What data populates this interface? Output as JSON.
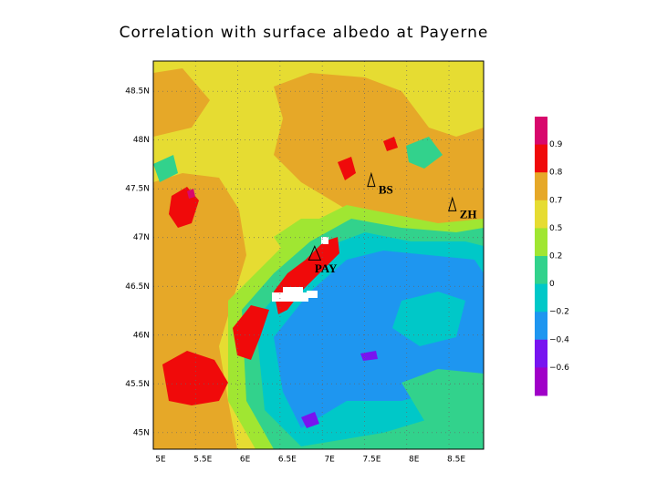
{
  "title": "Correlation with surface albedo at Payerne",
  "lon_range": [
    5,
    8.91
  ],
  "lat_range": [
    44.83,
    48.81
  ],
  "lat_ticks": [
    {
      "value": 45,
      "label": "45N"
    },
    {
      "value": 45.5,
      "label": "45.5N"
    },
    {
      "value": 46,
      "label": "46N"
    },
    {
      "value": 46.5,
      "label": "46.5N"
    },
    {
      "value": 47,
      "label": "47N"
    },
    {
      "value": 47.5,
      "label": "47.5N"
    },
    {
      "value": 48,
      "label": "48N"
    },
    {
      "value": 48.5,
      "label": "48.5N"
    }
  ],
  "lon_ticks": [
    {
      "value": 5,
      "label": "5E"
    },
    {
      "value": 5.5,
      "label": "5.5E"
    },
    {
      "value": 6,
      "label": "6E"
    },
    {
      "value": 6.5,
      "label": "6.5E"
    },
    {
      "value": 7,
      "label": "7E"
    },
    {
      "value": 7.5,
      "label": "7.5E"
    },
    {
      "value": 8,
      "label": "8E"
    },
    {
      "value": 8.5,
      "label": "8.5E"
    }
  ],
  "colorbar": {
    "colors": [
      "#d8086c",
      "#f00a0a",
      "#e6a828",
      "#e6dc32",
      "#a0e632",
      "#32d28c",
      "#00c8c8",
      "#1e96f0",
      "#7814f0",
      "#a000c8"
    ],
    "levels": [
      0.9,
      0.8,
      0.7,
      0.5,
      0.2,
      0,
      {
        "value": -0.2,
        "label": "−0.2"
      },
      {
        "value": -0.4,
        "label": "−0.4"
      },
      {
        "value": -0.6,
        "label": "−0.6"
      }
    ]
  },
  "stations": [
    {
      "name": "BS",
      "lon": 7.58,
      "lat": 47.59
    },
    {
      "name": "ZH",
      "lon": 8.54,
      "lat": 47.34
    },
    {
      "name": "PAY",
      "lon": 6.91,
      "lat": 46.84
    }
  ]
}
